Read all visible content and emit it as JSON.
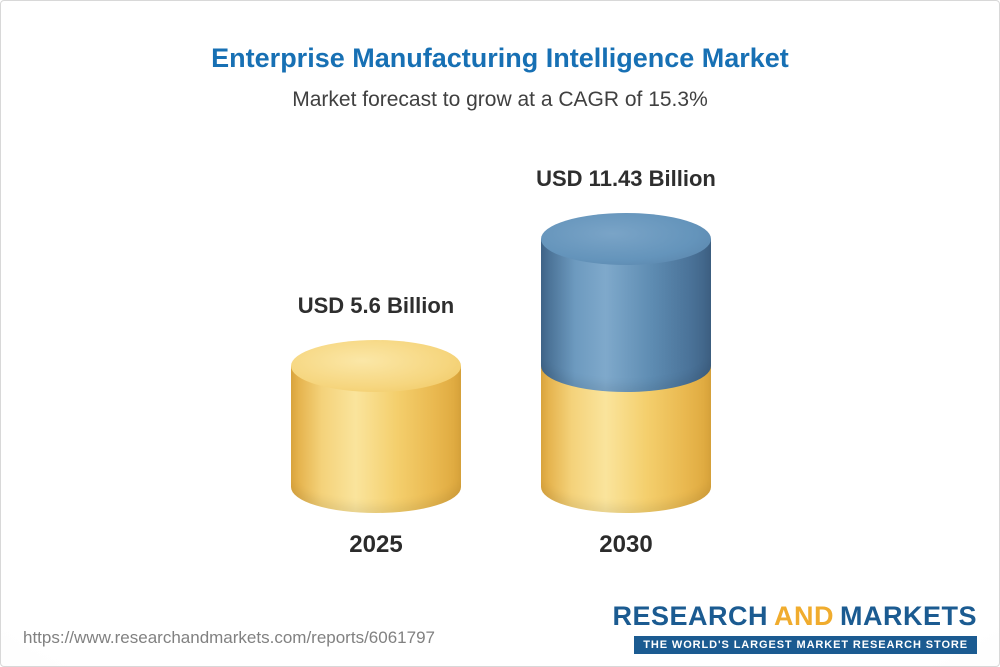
{
  "header": {
    "title": "Enterprise Manufacturing Intelligence Market",
    "subtitle": "Market forecast to grow at a CAGR of 15.3%"
  },
  "chart_data": {
    "type": "bar",
    "categories": [
      "2025",
      "2030"
    ],
    "values": [
      5.6,
      11.43
    ],
    "value_labels": [
      "USD 5.6 Billion",
      "USD 11.43 Billion"
    ],
    "unit": "USD Billion",
    "cagr_percent": 15.3,
    "title": "Enterprise Manufacturing Intelligence Market",
    "subtitle": "Market forecast to grow at a CAGR of 15.3%",
    "legend": "none",
    "grid": false,
    "colors": {
      "bar_2025": "#f2ca68",
      "bar_2030_base": "#f2ca68",
      "bar_2030_growth": "#5587ae"
    }
  },
  "footer": {
    "url": "https://www.researchandmarkets.com/reports/6061797",
    "logo": {
      "part1": "RESEARCH",
      "part2": "AND",
      "part3": "MARKETS",
      "tagline": "THE WORLD'S LARGEST MARKET RESEARCH STORE"
    }
  }
}
